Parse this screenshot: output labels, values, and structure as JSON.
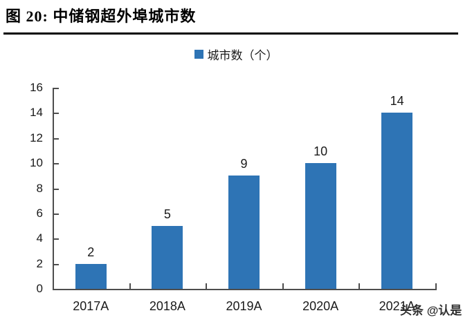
{
  "figure": {
    "title": "图 20: 中储钢超外埠城市数",
    "watermark": "头条 @认是"
  },
  "colors": {
    "bar": "#2E74B5",
    "axis": "#4d4d4d",
    "title_rule": "#000000",
    "text": "#1a1a1a"
  },
  "chart_data": {
    "type": "bar",
    "categories": [
      "2017A",
      "2018A",
      "2019A",
      "2020A",
      "2021A"
    ],
    "values": [
      2,
      5,
      9,
      10,
      14
    ],
    "title": "",
    "xlabel": "",
    "ylabel": "",
    "legend": "城市数（个）",
    "legend_position": "top-center",
    "ylim": [
      0,
      16
    ],
    "ytick_step": 2,
    "grid": false,
    "bar_color": "#2E74B5",
    "data_labels": [
      2,
      5,
      9,
      10,
      14
    ]
  }
}
